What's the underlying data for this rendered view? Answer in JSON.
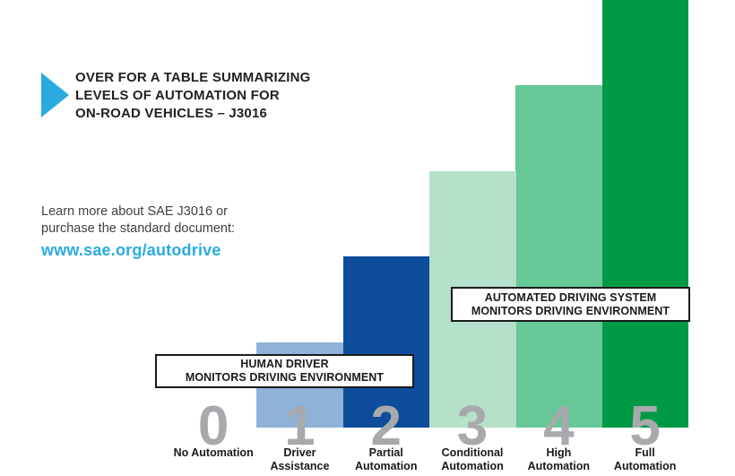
{
  "page": {
    "background": "#FFFFFF"
  },
  "header": {
    "icon": "right-triangle-icon",
    "accent_color": "#29ABE2",
    "title_lines": [
      "OVER FOR A TABLE SUMMARIZING",
      "LEVELS OF AUTOMATION FOR",
      "ON-ROAD VEHICLES – J3016"
    ]
  },
  "info": {
    "lines": [
      "Learn more about SAE J3016 or",
      "purchase the standard document:"
    ],
    "link": "www.sae.org/autodrive",
    "link_color": "#29ABE2",
    "text_color": "#3F3F41"
  },
  "chart_data": {
    "type": "bar",
    "title": "",
    "description": "SAE J3016 levels of driving automation — step bar chart rising from level 0 to level 5",
    "categories": [
      "0",
      "1",
      "2",
      "3",
      "4",
      "5"
    ],
    "values": [
      0,
      1,
      2,
      3,
      4,
      5
    ],
    "ylim": [
      0,
      5
    ],
    "grid": false,
    "legend_position": "none",
    "xlabel": "",
    "ylabel": "",
    "numeral_color": "#A7A9AC",
    "label_color": "#1A1A1A",
    "levels": [
      {
        "numeral": "0",
        "label_lines": [
          "No Automation"
        ],
        "value": 0,
        "bar_color": null
      },
      {
        "numeral": "1",
        "label_lines": [
          "Driver",
          "Assistance"
        ],
        "value": 1,
        "bar_color": "#8FB2D8"
      },
      {
        "numeral": "2",
        "label_lines": [
          "Partial",
          "Automation"
        ],
        "value": 2,
        "bar_color": "#0E4D9C"
      },
      {
        "numeral": "3",
        "label_lines": [
          "Conditional",
          "Automation"
        ],
        "value": 3,
        "bar_color": "#B5E0CA"
      },
      {
        "numeral": "4",
        "label_lines": [
          "High",
          "Automation"
        ],
        "value": 4,
        "bar_color": "#66C897"
      },
      {
        "numeral": "5",
        "label_lines": [
          "Full",
          "Automation"
        ],
        "value": 5,
        "bar_color": "#009A45"
      }
    ],
    "annotations": [
      {
        "id": "human",
        "lines": [
          "HUMAN DRIVER",
          "MONITORS DRIVING ENVIRONMENT"
        ],
        "spans_levels": "0–2"
      },
      {
        "id": "automated",
        "lines": [
          "AUTOMATED DRIVING SYSTEM",
          "MONITORS DRIVING ENVIRONMENT"
        ],
        "spans_levels": "3–5"
      }
    ],
    "baseline": {
      "left_segment_color": "#B9D5EA",
      "right_segment_color": "#B5E0CA"
    }
  }
}
